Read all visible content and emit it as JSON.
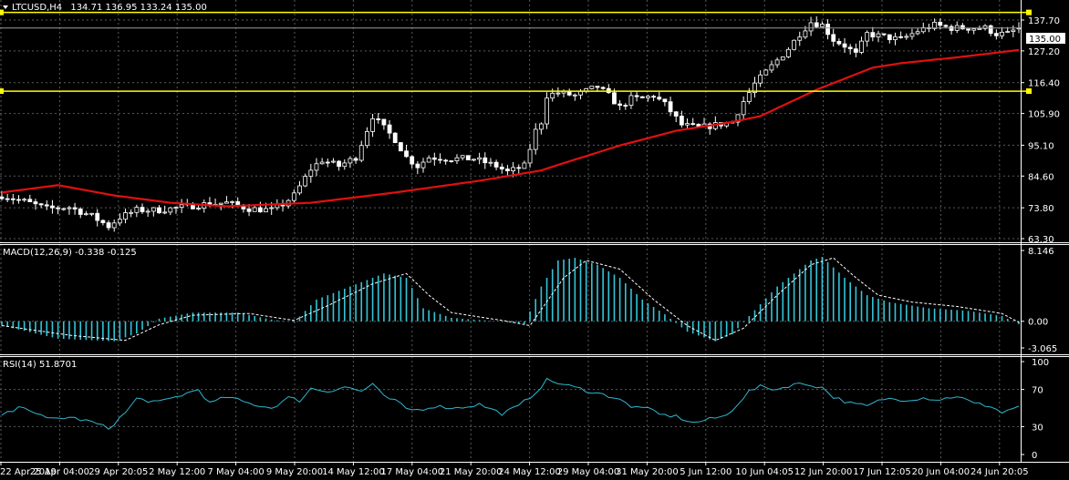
{
  "colors": {
    "background": "#000000",
    "grid": "#5a5a5a",
    "bull": "#000000",
    "bear": "#ffffff",
    "wick": "#ffffff",
    "ma": "#e01010",
    "hline": "#ffff00",
    "macd_hist": "#33c5d8",
    "signal": "#ffffff",
    "rsi": "#2fb7d0",
    "text": "#ffffff"
  },
  "header": {
    "symbol_tf": "LTCUSD,H4",
    "ohlc": "134.71 136.95 133.24 135.00",
    "macd_label": "MACD(12,26,9) -0.338 -0.125",
    "rsi_label": "RSI(14) 51.8701"
  },
  "chart_data": [
    {
      "type": "candlestick",
      "title": "LTCUSD,H4",
      "y_ticks": [
        "137.70",
        "127.20",
        "116.40",
        "105.90",
        "95.10",
        "84.60",
        "73.80",
        "63.30"
      ],
      "ylim": [
        63.3,
        140.8
      ],
      "current_price": "135.00",
      "horizontal_lines": [
        140.3,
        113.5
      ],
      "x_tick_labels": [
        "22 Apr 2019",
        "25 Apr 04:00",
        "29 Apr 20:05",
        "2 May 12:00",
        "7 May 04:00",
        "9 May 20:00",
        "14 May 12:00",
        "17 May 04:00",
        "21 May 20:00",
        "24 May 12:00",
        "29 May 04:00",
        "31 May 20:00",
        "5 Jun 12:00",
        "10 Jun 04:05",
        "12 Jun 20:00",
        "17 Jun 12:05",
        "20 Jun 04:00",
        "24 Jun 20:05"
      ],
      "close_path": [
        [
          0,
          78
        ],
        [
          4,
          76
        ],
        [
          8,
          73.5
        ],
        [
          12,
          74
        ],
        [
          16,
          71
        ],
        [
          19,
          67.5
        ],
        [
          21,
          70.5
        ],
        [
          24,
          73
        ],
        [
          28,
          73
        ],
        [
          32,
          74
        ],
        [
          36,
          75
        ],
        [
          40,
          75.5
        ],
        [
          44,
          73.5
        ],
        [
          48,
          73
        ],
        [
          50,
          75
        ],
        [
          52,
          78
        ],
        [
          55,
          87
        ],
        [
          57,
          90
        ],
        [
          60,
          88
        ],
        [
          63,
          91
        ],
        [
          66,
          105
        ],
        [
          68,
          101
        ],
        [
          70,
          97
        ],
        [
          72,
          91
        ],
        [
          74,
          88
        ],
        [
          76,
          91
        ],
        [
          80,
          90.5
        ],
        [
          84,
          90.5
        ],
        [
          88,
          88
        ],
        [
          90,
          86
        ],
        [
          93,
          88
        ],
        [
          95,
          100
        ],
        [
          96,
          103
        ],
        [
          97,
          112
        ],
        [
          99,
          113
        ],
        [
          102,
          112
        ],
        [
          106,
          115
        ],
        [
          108,
          112
        ],
        [
          110,
          108
        ],
        [
          112,
          111
        ],
        [
          114,
          111
        ],
        [
          116,
          112
        ],
        [
          118,
          109
        ],
        [
          121,
          102
        ],
        [
          124,
          101
        ],
        [
          127,
          102
        ],
        [
          130,
          103
        ],
        [
          132,
          110
        ],
        [
          134,
          116
        ],
        [
          137,
          122
        ],
        [
          140,
          128
        ],
        [
          142,
          133
        ],
        [
          144,
          137
        ],
        [
          146,
          136
        ],
        [
          148,
          131
        ],
        [
          150,
          129
        ],
        [
          152,
          126
        ],
        [
          154,
          133
        ],
        [
          157,
          132
        ],
        [
          160,
          131
        ],
        [
          163,
          134
        ],
        [
          166,
          136
        ],
        [
          169,
          135
        ],
        [
          172,
          135
        ],
        [
          175,
          135
        ],
        [
          177,
          133
        ],
        [
          179,
          133
        ],
        [
          181,
          135
        ]
      ],
      "ma_path": [
        [
          0,
          79
        ],
        [
          10,
          81.5
        ],
        [
          20,
          78
        ],
        [
          30,
          75.5
        ],
        [
          40,
          74.3
        ],
        [
          55,
          75.5
        ],
        [
          70,
          79
        ],
        [
          85,
          83
        ],
        [
          96,
          86.5
        ],
        [
          100,
          89
        ],
        [
          110,
          95
        ],
        [
          120,
          100
        ],
        [
          130,
          103
        ],
        [
          135,
          105
        ],
        [
          145,
          114
        ],
        [
          155,
          121.5
        ],
        [
          160,
          123
        ],
        [
          170,
          125
        ],
        [
          181,
          127.5
        ]
      ]
    },
    {
      "type": "bar",
      "title": "MACD(12,26,9)",
      "y_ticks": [
        "8.146",
        "0.00",
        "-3.065"
      ],
      "ylim": [
        -3.065,
        8.146
      ],
      "main_value": -0.338,
      "signal_value": -0.125,
      "hist_path": [
        [
          0,
          -0.5
        ],
        [
          10,
          -2
        ],
        [
          20,
          -2.3
        ],
        [
          24,
          -1.4
        ],
        [
          28,
          0.3
        ],
        [
          34,
          1
        ],
        [
          42,
          1
        ],
        [
          48,
          0.2
        ],
        [
          52,
          -0.1
        ],
        [
          56,
          2.5
        ],
        [
          62,
          4
        ],
        [
          68,
          5.5
        ],
        [
          72,
          5
        ],
        [
          75,
          1.5
        ],
        [
          80,
          0.4
        ],
        [
          88,
          0
        ],
        [
          93,
          -0.3
        ],
        [
          96,
          4
        ],
        [
          99,
          7
        ],
        [
          102,
          7.3
        ],
        [
          106,
          6.5
        ],
        [
          110,
          5
        ],
        [
          114,
          2.5
        ],
        [
          118,
          0.8
        ],
        [
          122,
          -1.2
        ],
        [
          127,
          -2.3
        ],
        [
          130,
          -1.5
        ],
        [
          133,
          0.6
        ],
        [
          138,
          4
        ],
        [
          144,
          7
        ],
        [
          146,
          7.4
        ],
        [
          150,
          5
        ],
        [
          154,
          3
        ],
        [
          158,
          2.2
        ],
        [
          165,
          1.5
        ],
        [
          172,
          1.2
        ],
        [
          178,
          0.6
        ],
        [
          181,
          -0.338
        ]
      ],
      "signal_path": [
        [
          0,
          -0.5
        ],
        [
          12,
          -1.6
        ],
        [
          22,
          -2.2
        ],
        [
          28,
          -0.4
        ],
        [
          34,
          0.7
        ],
        [
          44,
          0.9
        ],
        [
          52,
          0.1
        ],
        [
          58,
          1.8
        ],
        [
          66,
          4.3
        ],
        [
          72,
          5.5
        ],
        [
          76,
          3
        ],
        [
          80,
          1
        ],
        [
          90,
          0
        ],
        [
          94,
          -0.5
        ],
        [
          100,
          5
        ],
        [
          104,
          7
        ],
        [
          110,
          6
        ],
        [
          116,
          2.5
        ],
        [
          122,
          -0.5
        ],
        [
          127,
          -2.2
        ],
        [
          132,
          -0.8
        ],
        [
          138,
          3
        ],
        [
          144,
          6.5
        ],
        [
          148,
          7.3
        ],
        [
          152,
          5
        ],
        [
          156,
          3
        ],
        [
          162,
          2.2
        ],
        [
          170,
          1.7
        ],
        [
          178,
          0.9
        ],
        [
          181,
          -0.125
        ]
      ]
    },
    {
      "type": "line",
      "title": "RSI(14)",
      "y_ticks": [
        "100",
        "70",
        "30",
        "0"
      ],
      "ylim": [
        0,
        100
      ],
      "levels": [
        70,
        30
      ],
      "value": 51.8701,
      "rsi_path": [
        [
          0,
          42
        ],
        [
          4,
          52
        ],
        [
          8,
          38
        ],
        [
          12,
          40
        ],
        [
          16,
          35
        ],
        [
          19,
          28
        ],
        [
          22,
          45
        ],
        [
          24,
          60
        ],
        [
          28,
          56
        ],
        [
          32,
          64
        ],
        [
          35,
          70
        ],
        [
          37,
          55
        ],
        [
          40,
          62
        ],
        [
          44,
          55
        ],
        [
          48,
          50
        ],
        [
          51,
          61
        ],
        [
          53,
          58
        ],
        [
          55,
          71
        ],
        [
          58,
          68
        ],
        [
          61,
          73
        ],
        [
          64,
          68
        ],
        [
          66,
          76
        ],
        [
          68,
          62
        ],
        [
          70,
          58
        ],
        [
          72,
          49
        ],
        [
          74,
          48
        ],
        [
          77,
          52
        ],
        [
          81,
          50
        ],
        [
          85,
          54
        ],
        [
          89,
          44
        ],
        [
          92,
          52
        ],
        [
          95,
          67
        ],
        [
          97,
          80
        ],
        [
          99,
          77
        ],
        [
          102,
          72
        ],
        [
          106,
          66
        ],
        [
          110,
          60
        ],
        [
          112,
          50
        ],
        [
          114,
          52
        ],
        [
          117,
          43
        ],
        [
          120,
          41
        ],
        [
          123,
          34
        ],
        [
          126,
          38
        ],
        [
          129,
          42
        ],
        [
          131,
          55
        ],
        [
          133,
          68
        ],
        [
          135,
          73
        ],
        [
          138,
          70
        ],
        [
          141,
          76
        ],
        [
          144,
          75
        ],
        [
          146,
          72
        ],
        [
          148,
          62
        ],
        [
          151,
          55
        ],
        [
          154,
          52
        ],
        [
          157,
          60
        ],
        [
          161,
          59
        ],
        [
          164,
          61
        ],
        [
          167,
          59
        ],
        [
          170,
          63
        ],
        [
          173,
          55
        ],
        [
          176,
          52
        ],
        [
          178,
          45
        ],
        [
          180,
          50
        ],
        [
          181,
          51.9
        ]
      ]
    }
  ]
}
